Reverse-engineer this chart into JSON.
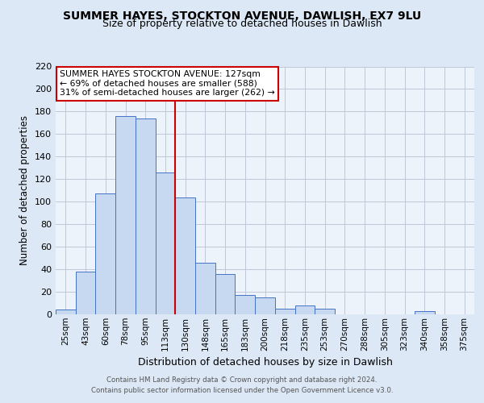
{
  "title_line1": "SUMMER HAYES, STOCKTON AVENUE, DAWLISH, EX7 9LU",
  "title_line2": "Size of property relative to detached houses in Dawlish",
  "xlabel": "Distribution of detached houses by size in Dawlish",
  "ylabel": "Number of detached properties",
  "categories": [
    "25sqm",
    "43sqm",
    "60sqm",
    "78sqm",
    "95sqm",
    "113sqm",
    "130sqm",
    "148sqm",
    "165sqm",
    "183sqm",
    "200sqm",
    "218sqm",
    "235sqm",
    "253sqm",
    "270sqm",
    "288sqm",
    "305sqm",
    "323sqm",
    "340sqm",
    "358sqm",
    "375sqm"
  ],
  "values": [
    4,
    38,
    107,
    176,
    174,
    126,
    104,
    46,
    36,
    17,
    15,
    5,
    8,
    5,
    0,
    0,
    0,
    0,
    3,
    0,
    0
  ],
  "bar_color": "#c6d9f0",
  "bar_edge_color": "#4472c4",
  "vline_color": "#cc0000",
  "annotation_text": "SUMMER HAYES STOCKTON AVENUE: 127sqm\n← 69% of detached houses are smaller (588)\n31% of semi-detached houses are larger (262) →",
  "annotation_box_color": "white",
  "annotation_box_edge": "#cc0000",
  "ylim": [
    0,
    220
  ],
  "yticks": [
    0,
    20,
    40,
    60,
    80,
    100,
    120,
    140,
    160,
    180,
    200,
    220
  ],
  "footer_line1": "Contains HM Land Registry data © Crown copyright and database right 2024.",
  "footer_line2": "Contains public sector information licensed under the Open Government Licence v3.0.",
  "bg_color": "#dce8f5",
  "plot_bg_color": "#edf3fb",
  "grid_color": "#c0c8d8"
}
